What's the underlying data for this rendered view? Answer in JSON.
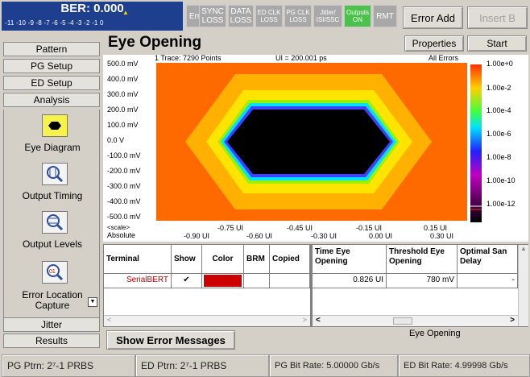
{
  "ber": {
    "title": "BER: 0.000",
    "scale": "-11 -10 -9 -8 -7 -6 -5 -4 -3 -2 -1 0"
  },
  "indicators": [
    {
      "label": "Error"
    },
    {
      "label": "SYNC LOSS"
    },
    {
      "label": "DATA LOSS"
    },
    {
      "label": "ED CLK LOSS"
    },
    {
      "label": "PG CLK LOSS"
    },
    {
      "label": "Jitter/ ISI/SSC"
    },
    {
      "label": "Outputs ON",
      "color": "#4cc24c"
    },
    {
      "label": "RMT"
    }
  ],
  "toolbar": {
    "error_add": "Error Add",
    "insert_b": "Insert B",
    "properties": "Properties",
    "start": "Start"
  },
  "nav": {
    "pattern": "Pattern",
    "pg_setup": "PG Setup",
    "ed_setup": "ED Setup",
    "analysis": "Analysis",
    "jitter": "Jitter",
    "results": "Results"
  },
  "analysis_items": [
    {
      "label": "Eye Diagram",
      "icon": "eye-diagram-icon"
    },
    {
      "label": "Output Timing",
      "icon": "output-timing-icon"
    },
    {
      "label": "Output Levels",
      "icon": "output-levels-icon"
    },
    {
      "label": "Error Location Capture",
      "icon": "error-location-icon"
    }
  ],
  "eye": {
    "title": "Eye Opening",
    "trace_info": "1 Trace: 7290 Points",
    "ui_info": "UI = 200.001 ps",
    "errors_info": "All Errors",
    "y_labels": [
      "500.0 mV",
      "400.0 mV",
      "300.0 mV",
      "200.0 mV",
      "100.0 mV",
      "0.0 V",
      "-100.0 mV",
      "-200.0 mV",
      "-300.0 mV",
      "-400.0 mV",
      "-500.0 mV"
    ],
    "scale_label": "<scale>",
    "absolute_label": "Absolute",
    "x_scale_labels": [
      "-0.75 UI",
      "-0.45 UI",
      "-0.15 UI",
      "0.15 UI"
    ],
    "x_abs_labels": [
      "-0.90 UI",
      "-0.60 UI",
      "-0.30 UI",
      "0.00 UI",
      "0.30 UI"
    ],
    "legend": [
      "1.00e+0",
      "1.00e-2",
      "1.00e-4",
      "1.00e-6",
      "1.00e-8",
      "1.00e-10",
      "1.00e-12"
    ]
  },
  "table": {
    "headers": [
      "Terminal",
      "Show",
      "Color",
      "BRM",
      "Copied",
      "Time Eye Opening",
      "Threshold Eye Opening",
      "Optimal San Delay"
    ],
    "row": {
      "terminal": "SerialBERT",
      "show": "✔",
      "color": "#cc0000",
      "time_eye": "0.826 UI",
      "threshold_eye": "780 mV",
      "delay": "-"
    }
  },
  "show_errors": "Show Error Messages",
  "status_msg": "Eye Opening",
  "statusbar": [
    "PG Ptrn: 2⁷-1 PRBS",
    "ED Ptrn: 2⁷-1 PRBS",
    "PG Bit Rate: 5.00000 Gb/s",
    "ED Bit Rate: 4.99998 Gb/s"
  ]
}
